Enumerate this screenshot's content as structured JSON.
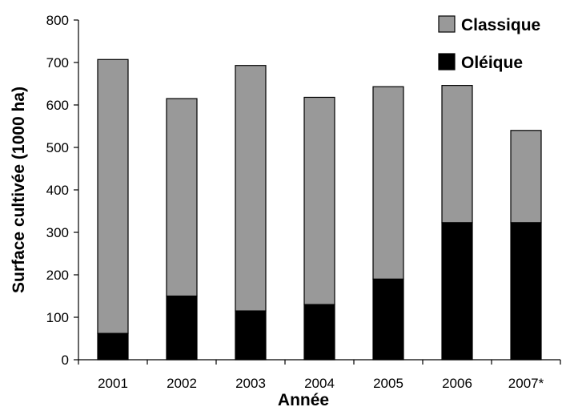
{
  "chart_data": {
    "type": "bar",
    "stacked": true,
    "categories": [
      "2001",
      "2002",
      "2003",
      "2004",
      "2005",
      "2006",
      "2007*"
    ],
    "series": [
      {
        "name": "Oléique",
        "color": "#000000",
        "values": [
          62,
          150,
          115,
          130,
          190,
          323,
          323
        ]
      },
      {
        "name": "Classique",
        "color": "#999999",
        "values": [
          645,
          465,
          578,
          488,
          453,
          323,
          217
        ]
      }
    ],
    "xlabel": "Année",
    "ylabel": "Surface cultivée (1000 ha)",
    "ylim": [
      0,
      800
    ],
    "yticks": [
      0,
      100,
      200,
      300,
      400,
      500,
      600,
      700,
      800
    ],
    "grid": false,
    "legend": {
      "position": "top-right",
      "order": [
        "Classique",
        "Oléique"
      ]
    }
  }
}
